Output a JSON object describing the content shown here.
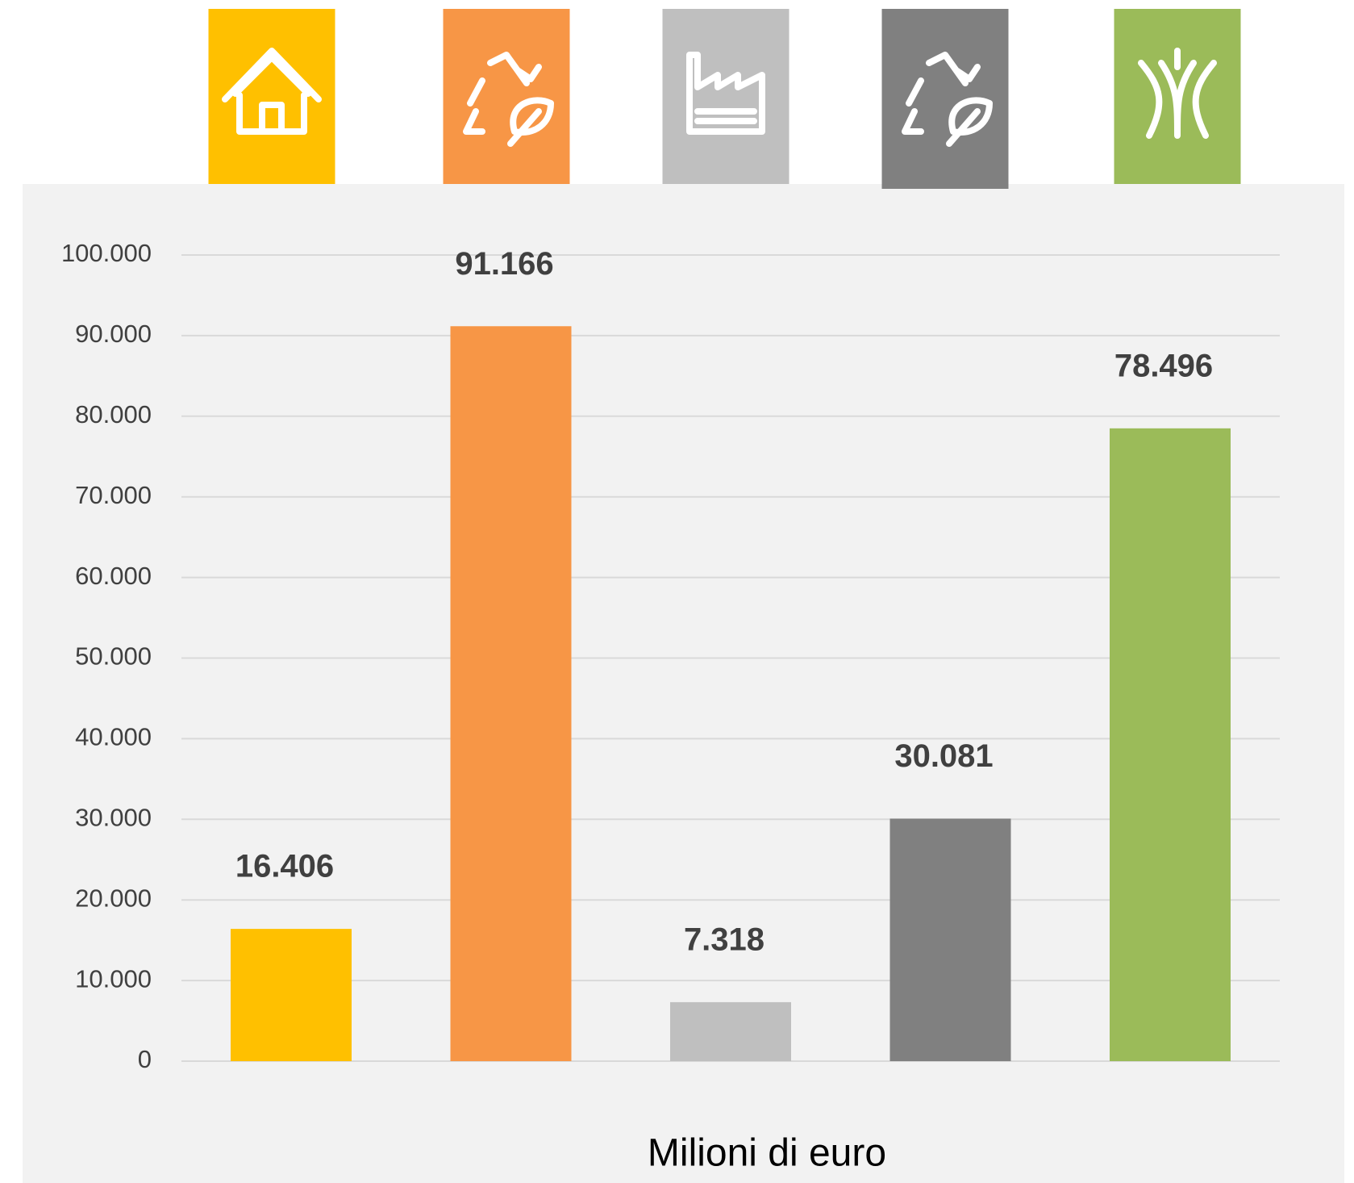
{
  "chart_data": {
    "type": "bar",
    "categories": [
      null,
      null,
      null,
      null,
      null
    ],
    "values": [
      16406,
      91166,
      7318,
      30081,
      78496
    ],
    "value_labels": [
      "16.406",
      "91.166",
      "7.318",
      "30.081",
      "78.496"
    ],
    "colors": [
      "#ffc000",
      "#f79646",
      "#bfbfbf",
      "#808080",
      "#9bbb59"
    ],
    "x_label": "Milioni di euro",
    "ylim": [
      0,
      100000
    ],
    "yticks": [
      0,
      {
        "value": 10000,
        "label": "10.000"
      },
      {
        "value": 20000,
        "label": "20.000"
      },
      {
        "value": 30000,
        "label": "30.000"
      },
      {
        "value": 40000,
        "label": "40.000"
      },
      {
        "value": 50000,
        "label": "50.000"
      },
      {
        "value": 60000,
        "label": "60.000"
      },
      {
        "value": 70000,
        "label": "70.000"
      },
      {
        "value": 80000,
        "label": "80.000"
      },
      {
        "value": 90000,
        "label": "90.000"
      },
      {
        "value": 100000,
        "label": "100.000"
      }
    ],
    "grid": true
  }
}
